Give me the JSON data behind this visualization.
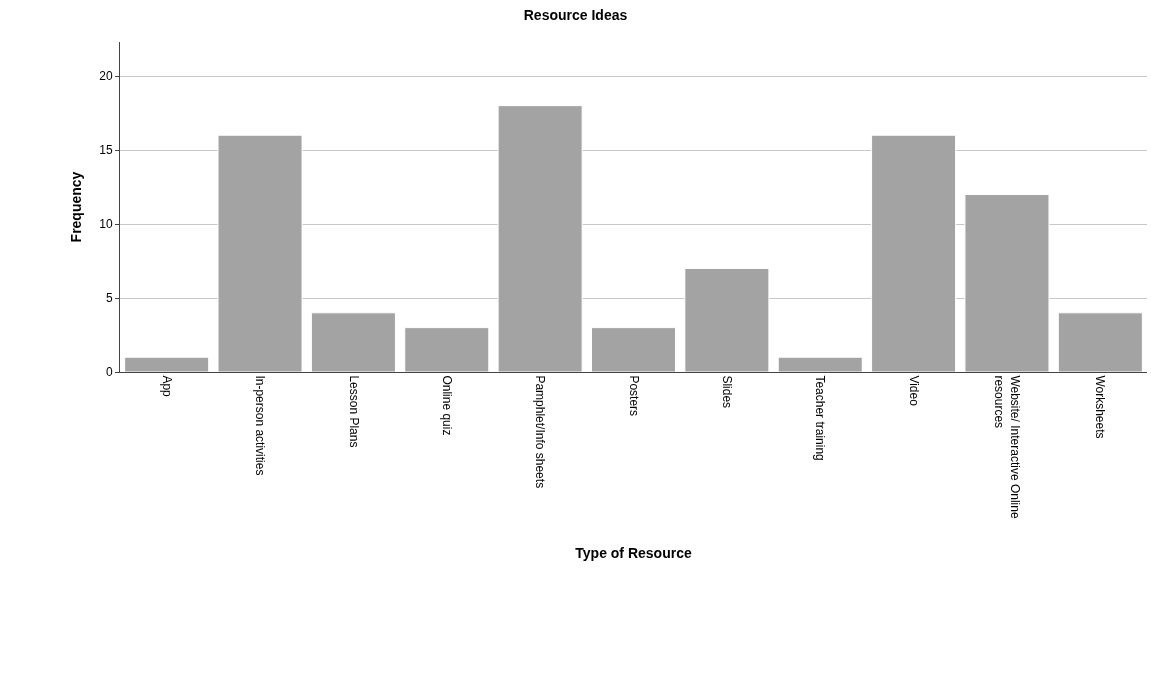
{
  "chart_data": {
    "type": "bar",
    "title": "Resource Ideas",
    "xlabel": "Type of Resource",
    "ylabel": "Frequency",
    "categories": [
      "App",
      "In-person activities",
      "Lesson Plans",
      "Online quiz",
      "Pamphlet/Info sheets",
      "Posters",
      "Slides",
      "Teacher training",
      "Video",
      "Website/ Interactive Online resources",
      "Worksheets"
    ],
    "values": [
      1,
      16,
      4,
      3,
      18,
      3,
      7,
      1,
      16,
      12,
      4
    ],
    "color": "#a3a3a3",
    "ylim": [
      0,
      22.3
    ],
    "yticks": [
      0,
      5,
      10,
      15,
      20
    ],
    "grid": "y"
  }
}
